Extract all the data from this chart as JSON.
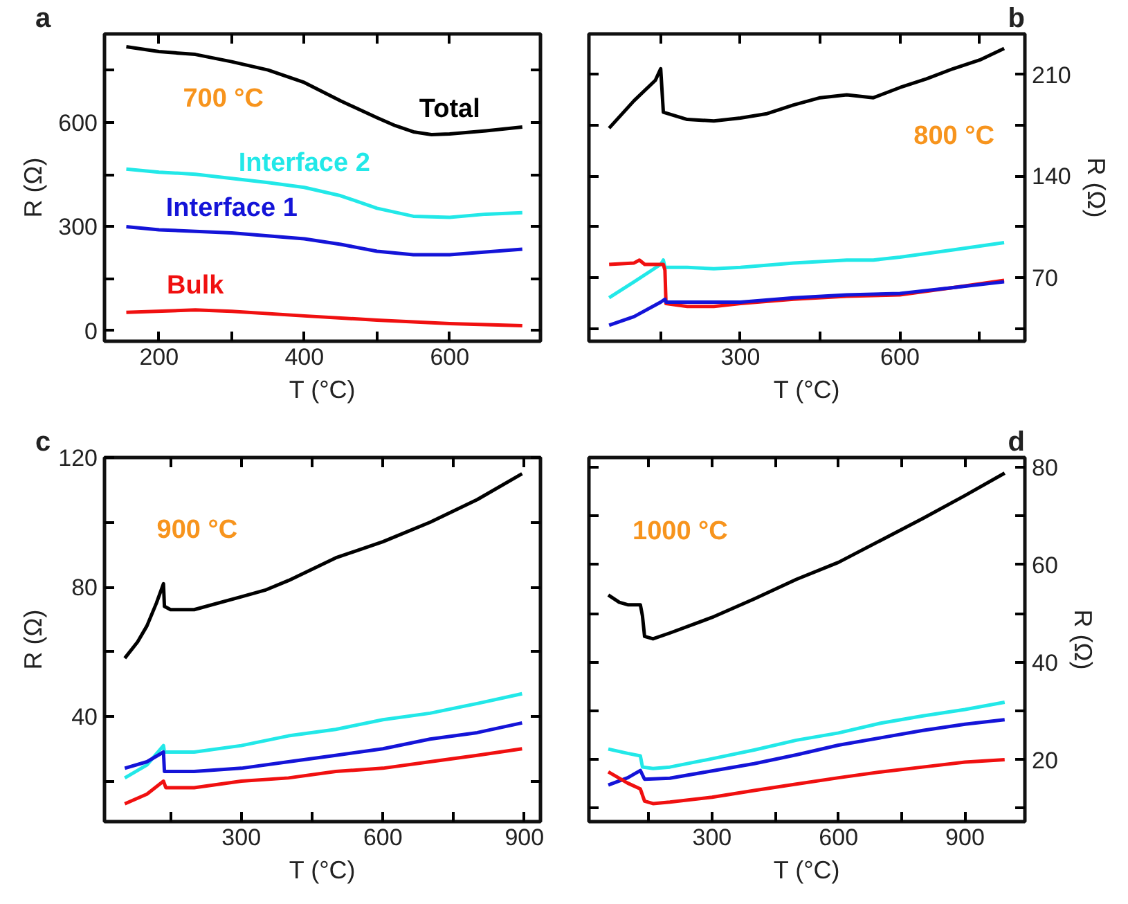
{
  "chart_data": [
    {
      "type": "line",
      "title": "a",
      "xlabel": "T (°C)",
      "ylabel": "R (Ω)",
      "annotations": [
        "700 °C"
      ],
      "line_style": "solid",
      "marker": "none",
      "grid": false,
      "xlim": [
        125,
        725
      ],
      "xticks": [
        200,
        {
          "value": 300,
          "label": null
        },
        400,
        {
          "value": 500,
          "label": null
        },
        600
      ],
      "ylim": [
        -30,
        855
      ],
      "yticks": [
        0,
        {
          "value": 150,
          "label": null
        },
        300,
        {
          "value": 450,
          "label": null
        },
        600,
        {
          "value": 750,
          "label": null
        }
      ],
      "series": [
        {
          "name": "Total",
          "color": "#000000",
          "x": [
            155,
            200,
            250,
            300,
            350,
            400,
            450,
            500,
            525,
            550,
            575,
            600,
            650,
            700
          ],
          "values": [
            818,
            804,
            796,
            775,
            751,
            715,
            662,
            614,
            591,
            573,
            565,
            567,
            576,
            587
          ]
        },
        {
          "name": "Interface 2",
          "color": "#22e8e8",
          "x": [
            155,
            200,
            250,
            300,
            350,
            400,
            450,
            500,
            550,
            600,
            650,
            700
          ],
          "values": [
            466,
            457,
            451,
            439,
            427,
            413,
            389,
            353,
            330,
            327,
            336,
            340
          ]
        },
        {
          "name": "Interface 1",
          "color": "#1414d8",
          "x": [
            155,
            200,
            300,
            400,
            450,
            500,
            550,
            600,
            650,
            700
          ],
          "values": [
            300,
            291,
            282,
            265,
            249,
            229,
            219,
            219,
            227,
            235
          ]
        },
        {
          "name": "Bulk",
          "color": "#f01010",
          "x": [
            155,
            250,
            300,
            400,
            500,
            600,
            700
          ],
          "values": [
            53,
            60,
            56,
            43,
            31,
            21,
            15
          ]
        }
      ]
    },
    {
      "type": "line",
      "title": "b",
      "xlabel": "T (°C)",
      "y2label": "R (Ω)",
      "annotations": [
        "800 °C"
      ],
      "line_style": "solid",
      "marker": "none",
      "grid": false,
      "xlim": [
        15,
        835
      ],
      "xticks": [
        {
          "value": 150,
          "label": null
        },
        300,
        {
          "value": 450,
          "label": null
        },
        600,
        {
          "value": 750,
          "label": null
        }
      ],
      "y2lim": [
        26,
        238
      ],
      "y2ticks": [
        {
          "value": 35,
          "label": null
        },
        70,
        {
          "value": 105,
          "label": null
        },
        140,
        {
          "value": 175,
          "label": null
        },
        210
      ],
      "series": [
        {
          "color": "#000000",
          "axis": "y2",
          "x": [
            53,
            100,
            140,
            150,
            155,
            200,
            250,
            300,
            350,
            400,
            450,
            500,
            550,
            600,
            650,
            700,
            750,
            796
          ],
          "values": [
            173,
            192,
            206,
            214,
            184,
            179,
            178,
            180,
            183,
            189,
            194,
            196,
            194,
            201,
            207,
            214,
            220,
            228
          ]
        },
        {
          "color": "#22e8e8",
          "axis": "y2",
          "x": [
            53,
            100,
            150,
            155,
            158,
            200,
            250,
            300,
            400,
            500,
            550,
            600,
            700,
            796
          ],
          "values": [
            56,
            67,
            79,
            82,
            77,
            77,
            76,
            77,
            80,
            82,
            82,
            84,
            89,
            94
          ]
        },
        {
          "color": "#f01010",
          "axis": "y2",
          "x": [
            53,
            100,
            110,
            120,
            155,
            158,
            160,
            200,
            250,
            300,
            400,
            500,
            600,
            700,
            796
          ],
          "values": [
            79,
            80,
            82,
            79,
            79,
            75,
            52,
            50,
            50,
            52,
            55,
            57,
            58,
            63,
            68
          ]
        },
        {
          "color": "#1414d8",
          "axis": "y2",
          "x": [
            53,
            100,
            150,
            158,
            160,
            200,
            300,
            400,
            500,
            600,
            700,
            796
          ],
          "values": [
            37,
            43,
            53,
            55,
            53,
            53,
            53,
            56,
            58,
            59,
            63,
            67
          ]
        }
      ]
    },
    {
      "type": "line",
      "title": "c",
      "xlabel": "T (°C)",
      "ylabel": "R (Ω)",
      "annotations": [
        "900 °C"
      ],
      "line_style": "solid",
      "marker": "none",
      "grid": false,
      "xlim": [
        10,
        934
      ],
      "xticks": [
        {
          "value": 150,
          "label": null
        },
        300,
        {
          "value": 450,
          "label": null
        },
        600,
        {
          "value": 750,
          "label": null
        },
        900
      ],
      "ylim": [
        7.5,
        120
      ],
      "yticks": [
        {
          "value": 20,
          "label": null
        },
        40,
        {
          "value": 60,
          "label": null
        },
        80,
        {
          "value": 100,
          "label": null
        },
        120
      ],
      "series": [
        {
          "color": "#000000",
          "x": [
            53,
            80,
            100,
            120,
            135,
            137,
            150,
            200,
            300,
            350,
            400,
            500,
            600,
            700,
            800,
            895
          ],
          "values": [
            58,
            63,
            68,
            75,
            81,
            74,
            73,
            73,
            77,
            79,
            82,
            89,
            94,
            100,
            107,
            115
          ]
        },
        {
          "color": "#22e8e8",
          "x": [
            53,
            100,
            135,
            137,
            200,
            300,
            400,
            500,
            600,
            700,
            800,
            895
          ],
          "values": [
            21,
            25,
            31,
            29,
            29,
            31,
            34,
            36,
            39,
            41,
            44,
            47
          ]
        },
        {
          "color": "#1414d8",
          "x": [
            53,
            100,
            135,
            137,
            200,
            300,
            400,
            500,
            600,
            700,
            800,
            895
          ],
          "values": [
            24,
            26,
            29,
            23,
            23,
            24,
            26,
            28,
            30,
            33,
            35,
            38
          ]
        },
        {
          "color": "#f01010",
          "x": [
            53,
            100,
            135,
            140,
            200,
            300,
            400,
            500,
            600,
            700,
            800,
            895
          ],
          "values": [
            13,
            16,
            20,
            18,
            18,
            20,
            21,
            23,
            24,
            26,
            28,
            30
          ]
        }
      ]
    },
    {
      "type": "line",
      "title": "d",
      "xlabel": "T (°C)",
      "y2label": "R (Ω)",
      "annotations": [
        "1000 °C"
      ],
      "line_style": "solid",
      "marker": "none",
      "grid": false,
      "xlim": [
        8,
        1042
      ],
      "xticks": [
        {
          "value": 150,
          "label": null
        },
        300,
        {
          "value": 450,
          "label": null
        },
        600,
        {
          "value": 750,
          "label": null
        },
        900
      ],
      "y2lim": [
        7.3,
        82
      ],
      "y2ticks": [
        {
          "value": 10,
          "label": null
        },
        20,
        {
          "value": 30,
          "label": null
        },
        40,
        {
          "value": 50,
          "label": null
        },
        60,
        {
          "value": 70,
          "label": null
        },
        80
      ],
      "series": [
        {
          "color": "#000000",
          "axis": "y2",
          "x": [
            54,
            80,
            100,
            130,
            135,
            140,
            160,
            200,
            300,
            400,
            500,
            600,
            700,
            800,
            900,
            994
          ],
          "values": [
            53.8,
            52.3,
            51.8,
            51.8,
            49.5,
            45.3,
            44.8,
            46,
            49.2,
            53,
            57,
            60.5,
            65,
            69.5,
            74.2,
            78.8
          ]
        },
        {
          "color": "#22e8e8",
          "axis": "y2",
          "x": [
            54,
            100,
            130,
            135,
            160,
            200,
            300,
            400,
            500,
            600,
            700,
            800,
            900,
            994
          ],
          "values": [
            22.2,
            21.3,
            20.8,
            18.5,
            18.2,
            18.5,
            20.2,
            22,
            24,
            25.5,
            27.5,
            29,
            30.3,
            31.8
          ]
        },
        {
          "color": "#1414d8",
          "axis": "y2",
          "x": [
            54,
            100,
            130,
            140,
            200,
            300,
            400,
            500,
            600,
            700,
            800,
            900,
            994
          ],
          "values": [
            14.8,
            16.3,
            17.8,
            16,
            16.2,
            17.7,
            19.2,
            21,
            23,
            24.5,
            26,
            27.3,
            28.2
          ]
        },
        {
          "color": "#f01010",
          "axis": "y2",
          "x": [
            54,
            100,
            130,
            140,
            160,
            200,
            300,
            400,
            500,
            600,
            700,
            800,
            900,
            994
          ],
          "values": [
            17.5,
            15.2,
            14,
            11.5,
            11,
            11.3,
            12.3,
            13.7,
            15,
            16.3,
            17.5,
            18.5,
            19.5,
            20
          ]
        }
      ]
    }
  ]
}
